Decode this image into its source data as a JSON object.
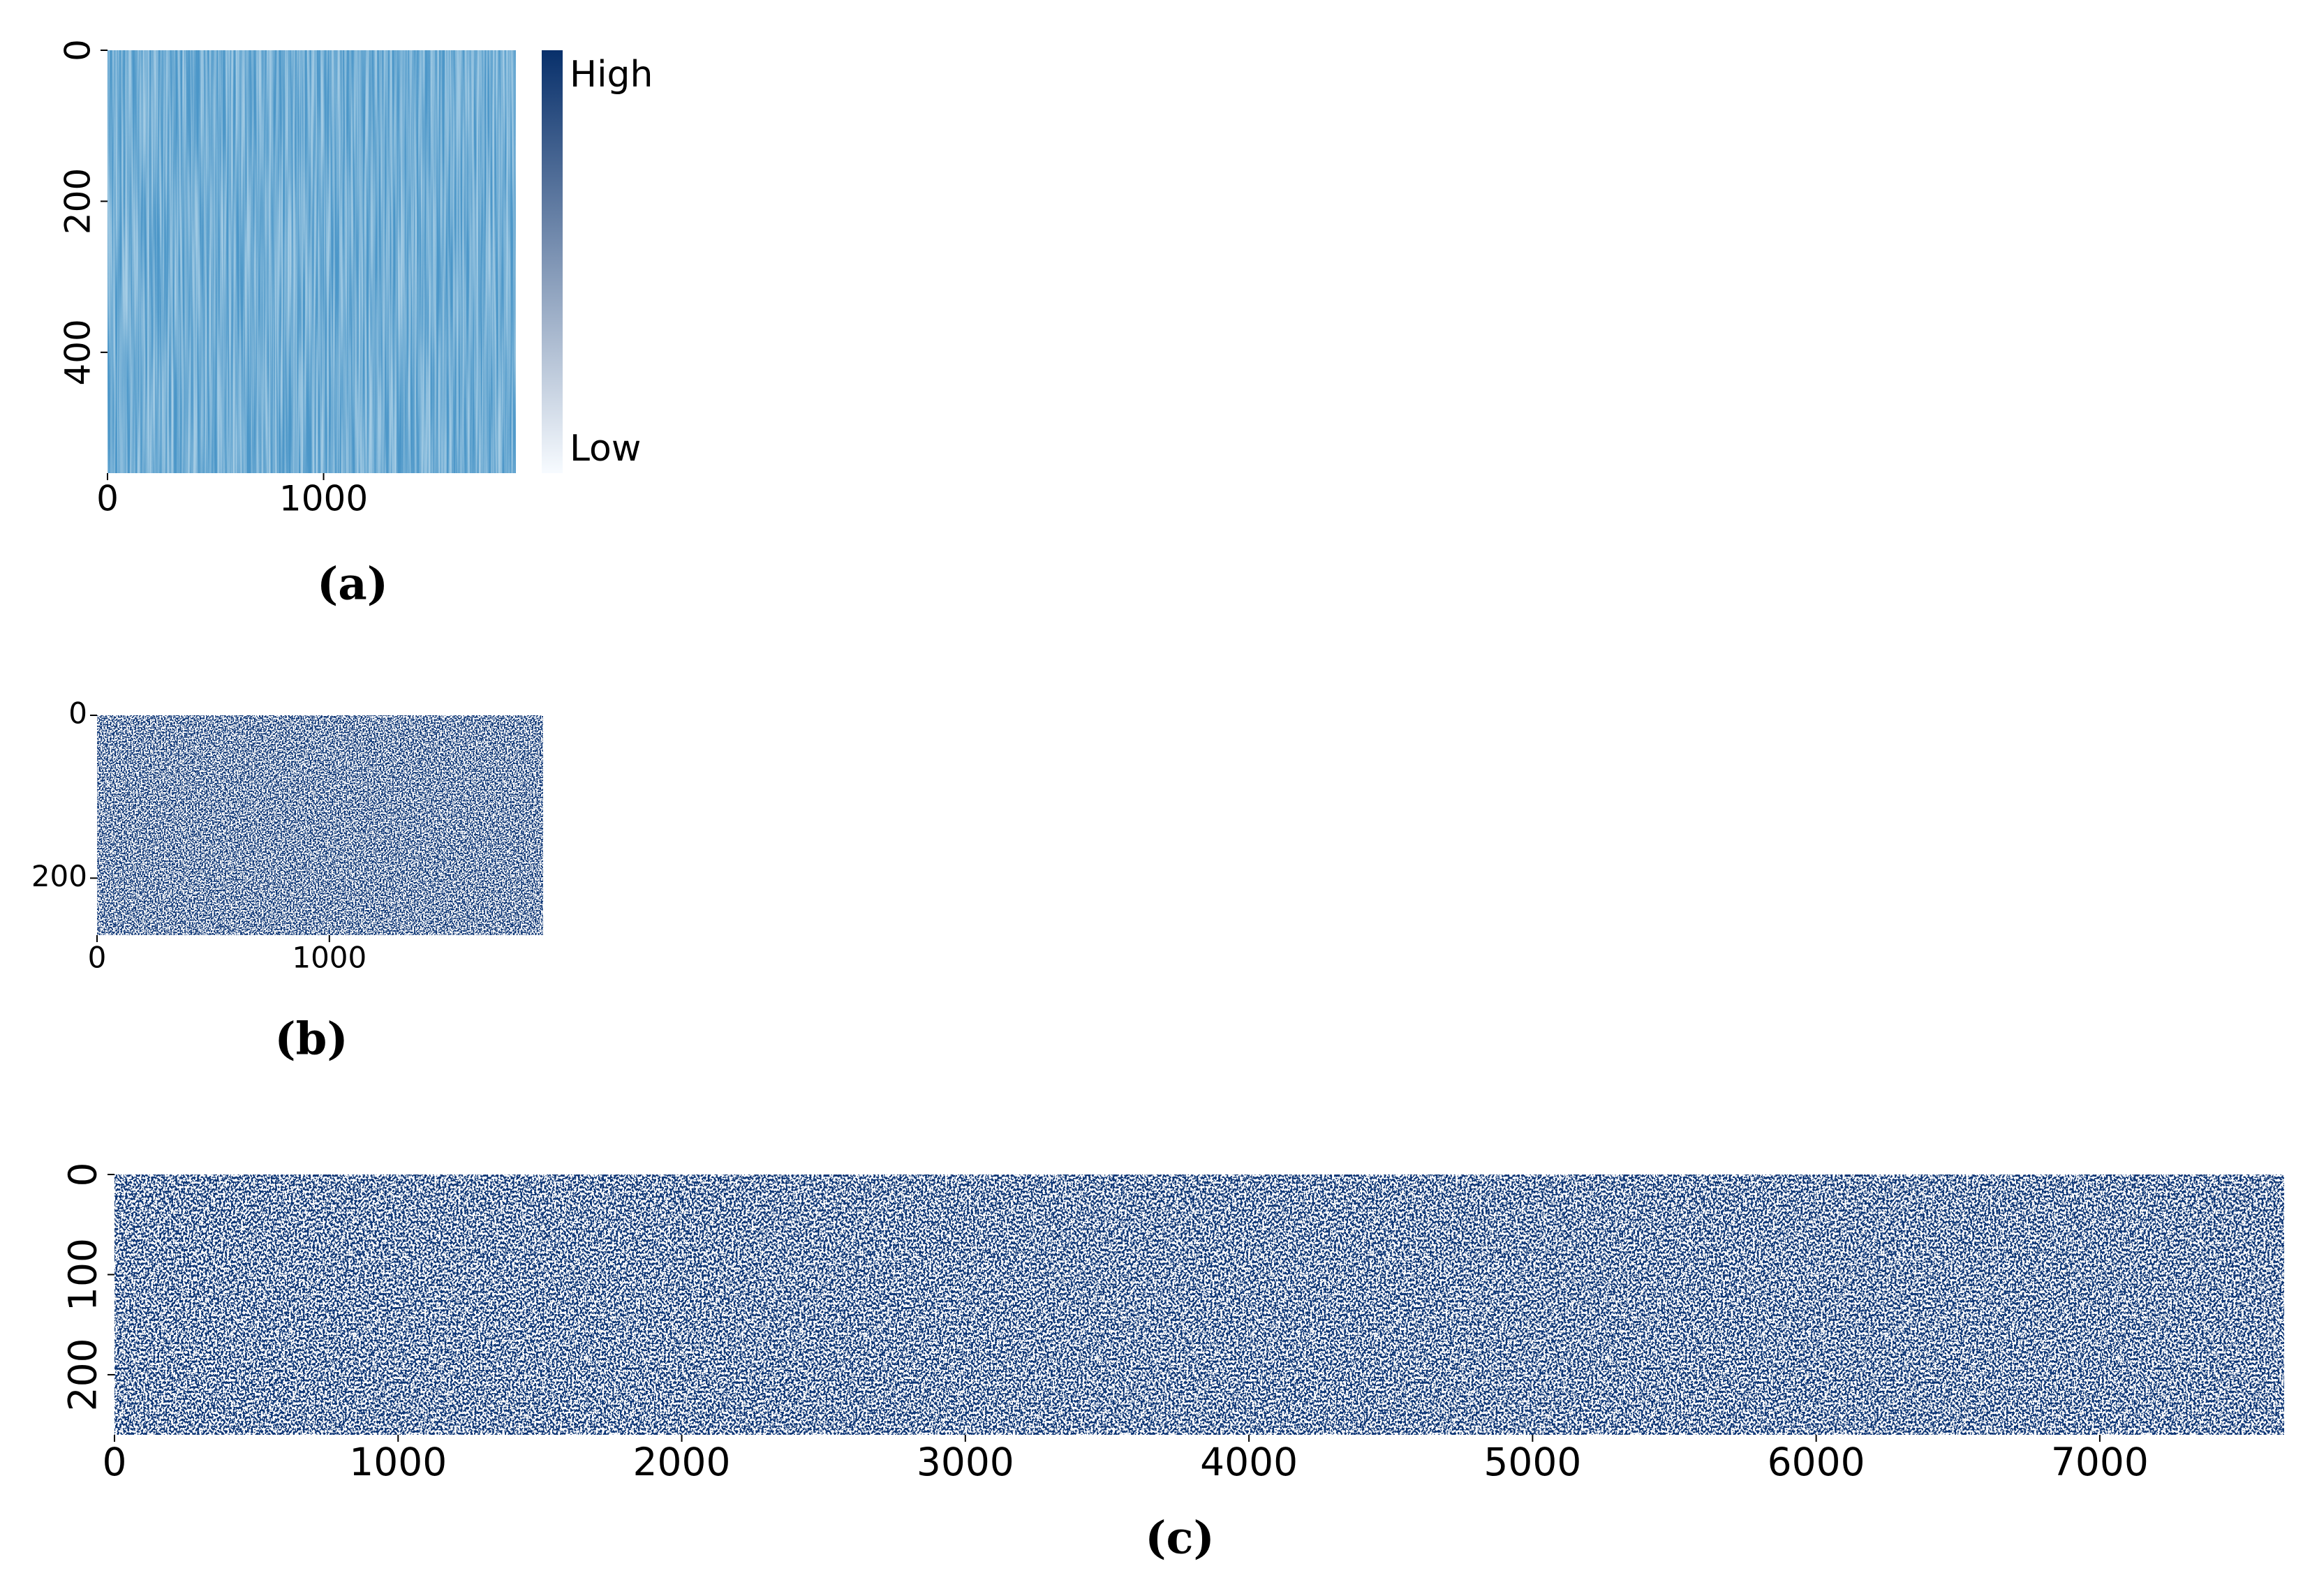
{
  "chart_data": [
    {
      "type": "heatmap",
      "caption": "(a)",
      "xlim": [
        0,
        1890
      ],
      "xticks": [
        0,
        1000
      ],
      "ylim": [
        0,
        560
      ],
      "yticks": [
        0,
        200,
        400
      ],
      "cmap": [
        "#f7fbff",
        "#08306b"
      ],
      "cell_color": "#4b96c8",
      "base_color": "#a6cde5",
      "colorbar": {
        "high": "High",
        "low": "Low"
      }
    },
    {
      "type": "heatmap",
      "caption": "(b)",
      "xlim": [
        0,
        1920
      ],
      "xticks": [
        0,
        1000
      ],
      "ylim": [
        0,
        270
      ],
      "yticks": [
        0,
        200
      ],
      "cell_color": "#0b3675",
      "base_color": "#ffffff"
    },
    {
      "type": "heatmap",
      "caption": "(c)",
      "xlim": [
        0,
        7650
      ],
      "xticks": [
        0,
        1000,
        2000,
        3000,
        4000,
        5000,
        6000,
        7000
      ],
      "ylim": [
        0,
        260
      ],
      "yticks": [
        0,
        100,
        200
      ],
      "cell_color": "#0b3675",
      "base_color": "#ffffff"
    }
  ]
}
